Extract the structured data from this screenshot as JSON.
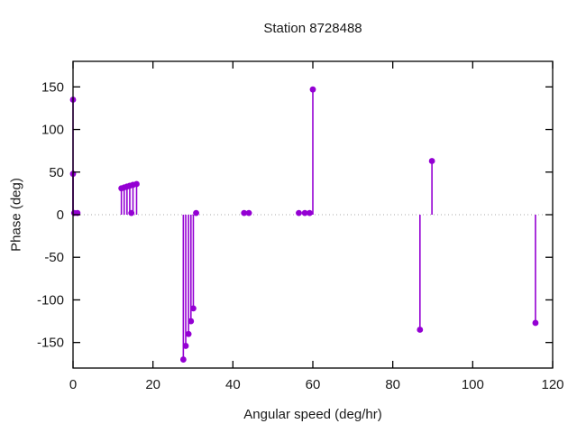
{
  "colors": {
    "series": "#9400d3",
    "axis": "#000000",
    "zero_line": "#a8a8a8",
    "text": "#1a1a1a",
    "background": "#ffffff"
  },
  "chart_data": {
    "type": "stem",
    "title": "Station 8728488",
    "xlabel": "Angular speed (deg/hr)",
    "ylabel": "Phase (deg)",
    "xlim": [
      0,
      120
    ],
    "ylim": [
      -180,
      180
    ],
    "xticks": [
      0,
      20,
      40,
      60,
      80,
      100,
      120
    ],
    "yticks": [
      -150,
      -100,
      -50,
      0,
      50,
      100,
      150
    ],
    "grid": false,
    "zero_line_dotted": true,
    "legend": "none",
    "marker": "filled-circle",
    "points": [
      [
        0,
        135
      ],
      [
        0,
        48
      ],
      [
        0.3,
        2
      ],
      [
        1.1,
        2
      ],
      [
        12.1,
        31
      ],
      [
        12.8,
        32
      ],
      [
        13.5,
        33
      ],
      [
        14.2,
        34
      ],
      [
        14.6,
        2
      ],
      [
        15.0,
        35
      ],
      [
        15.9,
        36
      ],
      [
        27.6,
        -170
      ],
      [
        28.2,
        -154
      ],
      [
        28.9,
        -140
      ],
      [
        29.5,
        -125
      ],
      [
        30.1,
        -110
      ],
      [
        30.8,
        2
      ],
      [
        42.8,
        2
      ],
      [
        44.0,
        2
      ],
      [
        56.5,
        2
      ],
      [
        58.0,
        2
      ],
      [
        59.2,
        2
      ],
      [
        60.0,
        147
      ],
      [
        86.8,
        -135
      ],
      [
        89.8,
        63
      ],
      [
        115.7,
        -127
      ]
    ]
  }
}
